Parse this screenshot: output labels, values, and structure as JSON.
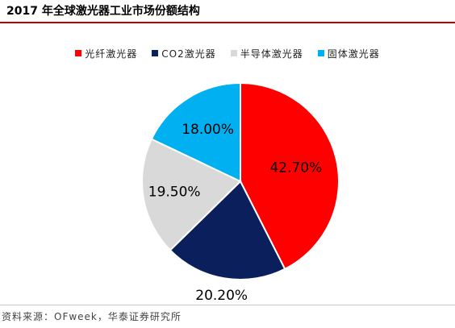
{
  "title": "2017 年全球激光器工业市场份额结构",
  "source": "资料来源：OFweek，华泰证券研究所",
  "chart_data": {
    "type": "pie",
    "categories": [
      "光纤激光器",
      "CO2激光器",
      "半导体激光器",
      "固体激光器"
    ],
    "values": [
      42.7,
      20.2,
      19.5,
      18.0
    ],
    "value_labels": [
      "42.70%",
      "20.20%",
      "19.50%",
      "18.00%"
    ],
    "colors": [
      "#ff0000",
      "#0b1f5c",
      "#d9d9d9",
      "#00b0f0"
    ],
    "legend_position": "top",
    "start": "12 o'clock, clockwise"
  }
}
